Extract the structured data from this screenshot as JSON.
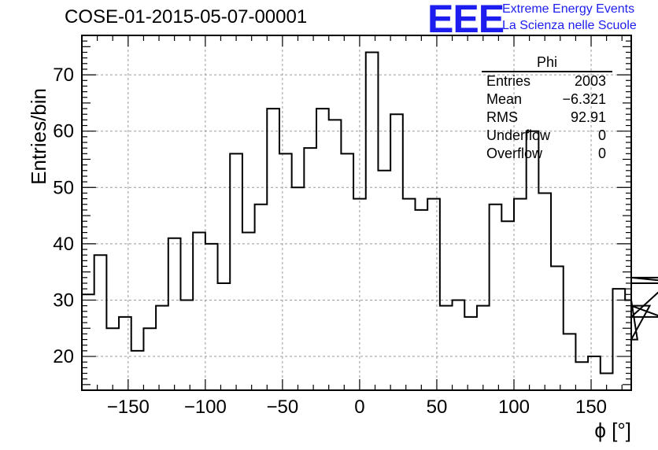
{
  "header": {
    "title": "COSE-01-2015-05-07-00001",
    "logo_text": "EEE",
    "logo_line1": "Extreme Energy Events",
    "logo_line2": "La Scienza nelle Scuole",
    "logo_color": "#1d1df0"
  },
  "stats_box": {
    "name": "Phi",
    "rows": [
      {
        "label": "Entries",
        "value": "2003"
      },
      {
        "label": "Mean",
        "value": "−6.321"
      },
      {
        "label": "RMS",
        "value": "92.91"
      },
      {
        "label": "Underflow",
        "value": "0"
      },
      {
        "label": "Overflow",
        "value": "0"
      }
    ]
  },
  "chart_data": {
    "type": "bar",
    "style": "step-histogram",
    "title": "COSE-01-2015-05-07-00001",
    "xlabel": "ϕ [°]",
    "ylabel": "Entries/bin",
    "xlim": [
      -180,
      176
    ],
    "ylim": [
      14,
      77
    ],
    "bin_width": 8,
    "x_start": -180,
    "x_ticks": [
      -150,
      -100,
      -50,
      0,
      50,
      100,
      150
    ],
    "x_tick_labels": [
      "−150",
      "−100",
      "−50",
      "0",
      "50",
      "100",
      "150"
    ],
    "y_ticks": [
      20,
      30,
      40,
      50,
      60,
      70
    ],
    "y_tick_labels": [
      "20",
      "30",
      "40",
      "50",
      "60",
      "70"
    ],
    "grid": true,
    "values": [
      31,
      38,
      25,
      27,
      21,
      25,
      29,
      41,
      30,
      42,
      40,
      33,
      56,
      42,
      47,
      64,
      56,
      50,
      57,
      64,
      62,
      56,
      48,
      74,
      53,
      63,
      48,
      46,
      48,
      29,
      30,
      27,
      29,
      47,
      44,
      48,
      60,
      49,
      36,
      24,
      19,
      20,
      17,
      32,
      30,
      23,
      29,
      27,
      34,
      33
    ],
    "line_color": "#000000"
  }
}
